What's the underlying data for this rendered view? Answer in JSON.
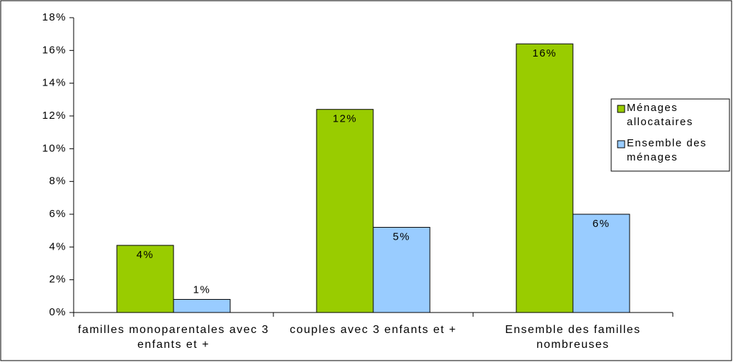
{
  "chart_data": {
    "type": "bar",
    "categories": [
      "familles monoparentales avec 3 enfants et +",
      "couples avec 3 enfants et +",
      "Ensemble des familles nombreuses"
    ],
    "series": [
      {
        "name": "Ménages allocataires",
        "color": "#99cc00",
        "values": [
          4.1,
          12.4,
          16.4
        ],
        "value_labels": [
          "4%",
          "12%",
          "16%"
        ]
      },
      {
        "name": "Ensemble des ménages",
        "color": "#99ccff",
        "values": [
          0.8,
          5.2,
          6.0
        ],
        "value_labels": [
          "1%",
          "5%",
          "6%"
        ]
      }
    ],
    "ylim": [
      0,
      18
    ],
    "yticks": [
      {
        "value": 0,
        "label": "0%"
      },
      {
        "value": 2,
        "label": "2%"
      },
      {
        "value": 4,
        "label": "4%"
      },
      {
        "value": 6,
        "label": "6%"
      },
      {
        "value": 8,
        "label": "8%"
      },
      {
        "value": 10,
        "label": "10%"
      },
      {
        "value": 12,
        "label": "12%"
      },
      {
        "value": 14,
        "label": "14%"
      },
      {
        "value": 16,
        "label": "16%"
      },
      {
        "value": 18,
        "label": "18%"
      }
    ],
    "grid": false,
    "legend": "right"
  }
}
